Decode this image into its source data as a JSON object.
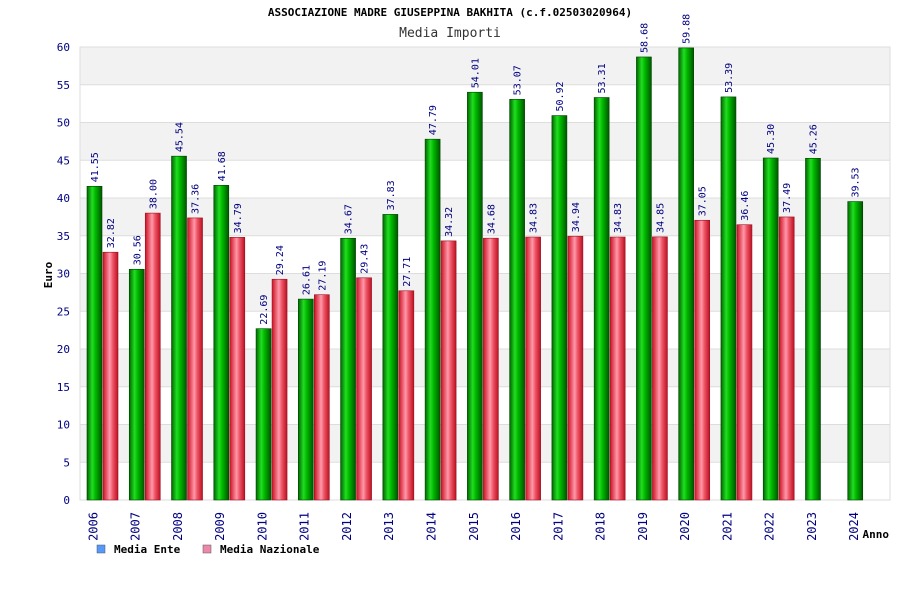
{
  "chart_data": {
    "type": "bar",
    "title": "ASSOCIAZIONE MADRE GIUSEPPINA BAKHITA (c.f.02503020964)",
    "subtitle": "Media Importi",
    "xlabel": "Anno",
    "ylabel": "Euro",
    "ylim": [
      0,
      60
    ],
    "yticks": [
      0,
      5,
      10,
      15,
      20,
      25,
      30,
      35,
      40,
      45,
      50,
      55,
      60
    ],
    "grid": true,
    "legend_position": "bottom-left",
    "categories": [
      "2006",
      "2007",
      "2008",
      "2009",
      "2010",
      "2011",
      "2012",
      "2013",
      "2014",
      "2015",
      "2016",
      "2017",
      "2018",
      "2019",
      "2020",
      "2021",
      "2022",
      "2023",
      "2024"
    ],
    "series": [
      {
        "name": "Media Ente",
        "color": "#00aa00",
        "legend_color": "#5599ff",
        "values": [
          41.55,
          30.56,
          45.54,
          41.68,
          22.69,
          26.61,
          34.67,
          37.83,
          47.79,
          54.01,
          53.07,
          50.92,
          53.31,
          58.68,
          59.88,
          53.39,
          45.3,
          45.26,
          39.53
        ],
        "labels": [
          "41.55",
          "30.56",
          "45.54",
          "41.68",
          "22.69",
          "26.61",
          "34.67",
          "37.83",
          "47.79",
          "54.01",
          "53.07",
          "50.92",
          "53.31",
          "58.68",
          "59.88",
          "53.39",
          "45.30",
          "45.26",
          "39.53"
        ]
      },
      {
        "name": "Media Nazionale",
        "color": "#dd2233",
        "legend_color": "#ee88aa",
        "values": [
          32.82,
          38.0,
          37.36,
          34.79,
          29.24,
          27.19,
          29.43,
          27.71,
          34.32,
          34.68,
          34.83,
          34.94,
          34.83,
          34.85,
          37.05,
          36.46,
          37.49,
          null,
          null
        ],
        "labels": [
          "32.82",
          "38.00",
          "37.36",
          "34.79",
          "29.24",
          "27.19",
          "29.43",
          "27.71",
          "34.32",
          "34.68",
          "34.83",
          "34.94",
          "34.83",
          "34.85",
          "37.05",
          "36.46",
          "37.49",
          null,
          null
        ]
      }
    ]
  }
}
